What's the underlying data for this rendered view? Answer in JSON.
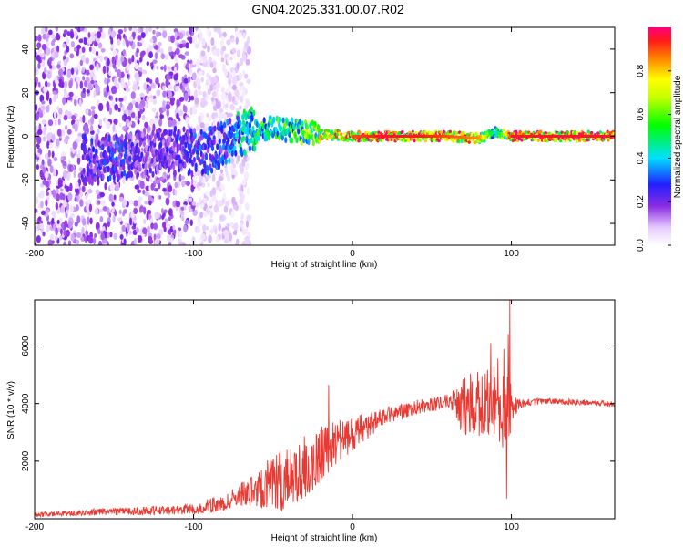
{
  "title": "GN04.2025.331.00.07.R02",
  "chart_data": [
    {
      "type": "heatmap",
      "name": "spectrogram",
      "title": "GN04.2025.331.00.07.R02",
      "xlabel": "Height of straight line (km)",
      "ylabel": "Frequency (Hz)",
      "xlim": [
        -200,
        165
      ],
      "ylim": [
        -50,
        50
      ],
      "xticks": [
        -200,
        -100,
        0,
        100
      ],
      "yticks": [
        -40,
        -20,
        0,
        20,
        40
      ],
      "colorbar": {
        "label": "Normalized spectral amplitude",
        "range": [
          0,
          1
        ],
        "ticks": [
          "0.0",
          "0.2",
          "0.4",
          "0.6",
          "0.8"
        ],
        "ticks_values": [
          0,
          0.2,
          0.4,
          0.6,
          0.8
        ]
      },
      "ridge": {
        "description": "centre-frequency trace vs height",
        "x": [
          -165,
          -150,
          -130,
          -110,
          -95,
          -80,
          -65,
          -50,
          -40,
          -30,
          -20,
          0,
          20,
          40,
          60,
          80,
          90,
          100,
          165
        ],
        "y": [
          -10,
          -10,
          -8,
          -6,
          -8,
          -3,
          3,
          4,
          3,
          2,
          1,
          0,
          0,
          0,
          0,
          -1,
          2,
          0,
          0
        ],
        "amplitude": [
          0.25,
          0.3,
          0.2,
          0.25,
          0.3,
          0.3,
          0.5,
          0.55,
          0.55,
          0.6,
          0.75,
          0.9,
          0.95,
          0.95,
          0.9,
          0.85,
          0.4,
          0.95,
          0.95
        ]
      },
      "scatter_regions": [
        {
          "x_range": [
            -200,
            -100
          ],
          "y_range": [
            -50,
            50
          ],
          "amplitude": 0.12
        },
        {
          "x_range": [
            -100,
            -65
          ],
          "y_range": [
            -50,
            50
          ],
          "amplitude": 0.06
        }
      ]
    },
    {
      "type": "line",
      "name": "snr",
      "xlabel": "Height of straight line (km)",
      "ylabel": "SNR (10 * v/v)",
      "xlim": [
        -200,
        165
      ],
      "ylim": [
        0,
        7600
      ],
      "xticks": [
        -200,
        -100,
        0,
        100
      ],
      "yticks": [
        2000,
        4000,
        6000
      ],
      "color": "#e83a33",
      "envelope": {
        "x": [
          -200,
          -160,
          -120,
          -100,
          -80,
          -70,
          -60,
          -50,
          -40,
          -30,
          -20,
          -10,
          0,
          10,
          20,
          40,
          60,
          70,
          80,
          90,
          95,
          98,
          100,
          105,
          120,
          165
        ],
        "y": [
          150,
          250,
          300,
          350,
          600,
          900,
          1100,
          1300,
          1600,
          1900,
          2300,
          2700,
          3000,
          3300,
          3600,
          3900,
          4100,
          4000,
          4200,
          4200,
          4300,
          4400,
          4000,
          4000,
          4100,
          4000
        ],
        "noise": [
          80,
          120,
          150,
          200,
          300,
          400,
          700,
          1000,
          1200,
          1100,
          1000,
          800,
          600,
          500,
          300,
          250,
          250,
          1000,
          1200,
          1400,
          1800,
          2500,
          600,
          150,
          100,
          100
        ]
      },
      "peaks": [
        {
          "x": -15,
          "y": 4650
        },
        {
          "x": 87,
          "y": 6100
        },
        {
          "x": 99,
          "y": 7600
        },
        {
          "x": 97,
          "y": 700
        }
      ]
    }
  ]
}
